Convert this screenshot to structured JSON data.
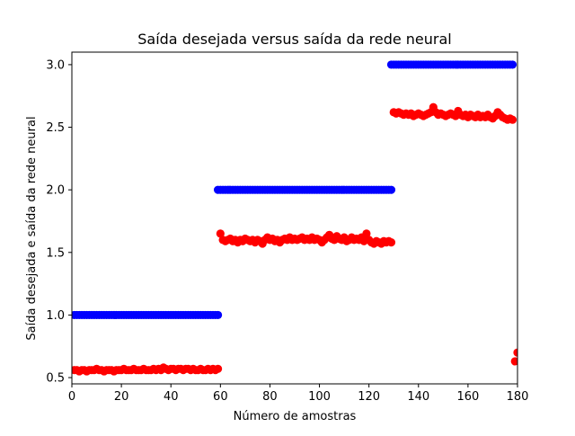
{
  "chart_data": {
    "type": "scatter",
    "title": "Saída desejada versus saída da rede neural",
    "xlabel": "Número de amostras",
    "ylabel": "Saída desejada e saída da rede neural",
    "xlim": [
      0,
      180
    ],
    "ylim": [
      0.45,
      3.1
    ],
    "xticks": [
      "0",
      "20",
      "40",
      "60",
      "80",
      "100",
      "120",
      "140",
      "160",
      "180"
    ],
    "yticks": [
      "0.5",
      "1.0",
      "1.5",
      "2.0",
      "2.5",
      "3.0"
    ],
    "grid": false,
    "series": [
      {
        "color": "#0000ff",
        "segments": [
          {
            "x_start": 1,
            "x_end": 59,
            "y": 1.0
          },
          {
            "x_start": 59,
            "x_end": 129,
            "y": 2.0
          },
          {
            "x_start": 129,
            "x_end": 178,
            "y": 3.0
          }
        ]
      },
      {
        "color": "#ff0000",
        "points": [
          [
            1,
            0.56
          ],
          [
            2,
            0.56
          ],
          [
            3,
            0.55
          ],
          [
            4,
            0.56
          ],
          [
            5,
            0.56
          ],
          [
            6,
            0.55
          ],
          [
            7,
            0.56
          ],
          [
            8,
            0.56
          ],
          [
            9,
            0.56
          ],
          [
            10,
            0.57
          ],
          [
            11,
            0.56
          ],
          [
            12,
            0.56
          ],
          [
            13,
            0.55
          ],
          [
            14,
            0.56
          ],
          [
            15,
            0.56
          ],
          [
            16,
            0.56
          ],
          [
            17,
            0.55
          ],
          [
            18,
            0.56
          ],
          [
            19,
            0.56
          ],
          [
            20,
            0.56
          ],
          [
            21,
            0.57
          ],
          [
            22,
            0.56
          ],
          [
            23,
            0.56
          ],
          [
            24,
            0.56
          ],
          [
            25,
            0.57
          ],
          [
            26,
            0.56
          ],
          [
            27,
            0.56
          ],
          [
            28,
            0.56
          ],
          [
            29,
            0.57
          ],
          [
            30,
            0.56
          ],
          [
            31,
            0.56
          ],
          [
            32,
            0.56
          ],
          [
            33,
            0.57
          ],
          [
            34,
            0.56
          ],
          [
            35,
            0.57
          ],
          [
            36,
            0.56
          ],
          [
            37,
            0.58
          ],
          [
            38,
            0.57
          ],
          [
            39,
            0.56
          ],
          [
            40,
            0.57
          ],
          [
            41,
            0.57
          ],
          [
            42,
            0.56
          ],
          [
            43,
            0.57
          ],
          [
            44,
            0.57
          ],
          [
            45,
            0.56
          ],
          [
            46,
            0.57
          ],
          [
            47,
            0.57
          ],
          [
            48,
            0.56
          ],
          [
            49,
            0.57
          ],
          [
            50,
            0.56
          ],
          [
            51,
            0.56
          ],
          [
            52,
            0.57
          ],
          [
            53,
            0.56
          ],
          [
            54,
            0.56
          ],
          [
            55,
            0.57
          ],
          [
            56,
            0.56
          ],
          [
            57,
            0.57
          ],
          [
            58,
            0.56
          ],
          [
            59,
            0.57
          ],
          [
            60,
            1.65
          ],
          [
            61,
            1.6
          ],
          [
            62,
            1.59
          ],
          [
            63,
            1.6
          ],
          [
            64,
            1.61
          ],
          [
            65,
            1.59
          ],
          [
            66,
            1.6
          ],
          [
            67,
            1.58
          ],
          [
            68,
            1.6
          ],
          [
            69,
            1.59
          ],
          [
            70,
            1.61
          ],
          [
            71,
            1.6
          ],
          [
            72,
            1.59
          ],
          [
            73,
            1.6
          ],
          [
            74,
            1.58
          ],
          [
            75,
            1.6
          ],
          [
            76,
            1.59
          ],
          [
            77,
            1.57
          ],
          [
            78,
            1.6
          ],
          [
            79,
            1.62
          ],
          [
            80,
            1.6
          ],
          [
            81,
            1.61
          ],
          [
            82,
            1.59
          ],
          [
            83,
            1.6
          ],
          [
            84,
            1.58
          ],
          [
            85,
            1.6
          ],
          [
            86,
            1.61
          ],
          [
            87,
            1.6
          ],
          [
            88,
            1.62
          ],
          [
            89,
            1.6
          ],
          [
            90,
            1.61
          ],
          [
            91,
            1.6
          ],
          [
            92,
            1.61
          ],
          [
            93,
            1.62
          ],
          [
            94,
            1.6
          ],
          [
            95,
            1.61
          ],
          [
            96,
            1.6
          ],
          [
            97,
            1.62
          ],
          [
            98,
            1.6
          ],
          [
            99,
            1.61
          ],
          [
            100,
            1.6
          ],
          [
            101,
            1.58
          ],
          [
            102,
            1.6
          ],
          [
            103,
            1.62
          ],
          [
            104,
            1.64
          ],
          [
            105,
            1.61
          ],
          [
            106,
            1.6
          ],
          [
            107,
            1.63
          ],
          [
            108,
            1.61
          ],
          [
            109,
            1.6
          ],
          [
            110,
            1.62
          ],
          [
            111,
            1.59
          ],
          [
            112,
            1.6
          ],
          [
            113,
            1.62
          ],
          [
            114,
            1.6
          ],
          [
            115,
            1.61
          ],
          [
            116,
            1.6
          ],
          [
            117,
            1.62
          ],
          [
            118,
            1.59
          ],
          [
            119,
            1.65
          ],
          [
            120,
            1.6
          ],
          [
            121,
            1.58
          ],
          [
            122,
            1.57
          ],
          [
            123,
            1.59
          ],
          [
            124,
            1.58
          ],
          [
            125,
            1.57
          ],
          [
            126,
            1.59
          ],
          [
            127,
            1.58
          ],
          [
            128,
            1.59
          ],
          [
            129,
            1.58
          ],
          [
            130,
            2.62
          ],
          [
            131,
            2.61
          ],
          [
            132,
            2.62
          ],
          [
            133,
            2.61
          ],
          [
            134,
            2.6
          ],
          [
            135,
            2.61
          ],
          [
            136,
            2.6
          ],
          [
            137,
            2.61
          ],
          [
            138,
            2.59
          ],
          [
            139,
            2.6
          ],
          [
            140,
            2.61
          ],
          [
            141,
            2.6
          ],
          [
            142,
            2.59
          ],
          [
            143,
            2.6
          ],
          [
            144,
            2.61
          ],
          [
            145,
            2.62
          ],
          [
            146,
            2.66
          ],
          [
            147,
            2.62
          ],
          [
            148,
            2.6
          ],
          [
            149,
            2.61
          ],
          [
            150,
            2.6
          ],
          [
            151,
            2.59
          ],
          [
            152,
            2.6
          ],
          [
            153,
            2.61
          ],
          [
            154,
            2.6
          ],
          [
            155,
            2.59
          ],
          [
            156,
            2.63
          ],
          [
            157,
            2.6
          ],
          [
            158,
            2.59
          ],
          [
            159,
            2.6
          ],
          [
            160,
            2.58
          ],
          [
            161,
            2.6
          ],
          [
            162,
            2.59
          ],
          [
            163,
            2.58
          ],
          [
            164,
            2.6
          ],
          [
            165,
            2.58
          ],
          [
            166,
            2.59
          ],
          [
            167,
            2.58
          ],
          [
            168,
            2.6
          ],
          [
            169,
            2.58
          ],
          [
            170,
            2.57
          ],
          [
            171,
            2.59
          ],
          [
            172,
            2.62
          ],
          [
            173,
            2.6
          ],
          [
            174,
            2.58
          ],
          [
            175,
            2.57
          ],
          [
            176,
            2.56
          ],
          [
            177,
            2.57
          ],
          [
            178,
            2.56
          ],
          [
            179,
            0.63
          ],
          [
            180,
            0.7
          ]
        ]
      }
    ]
  }
}
